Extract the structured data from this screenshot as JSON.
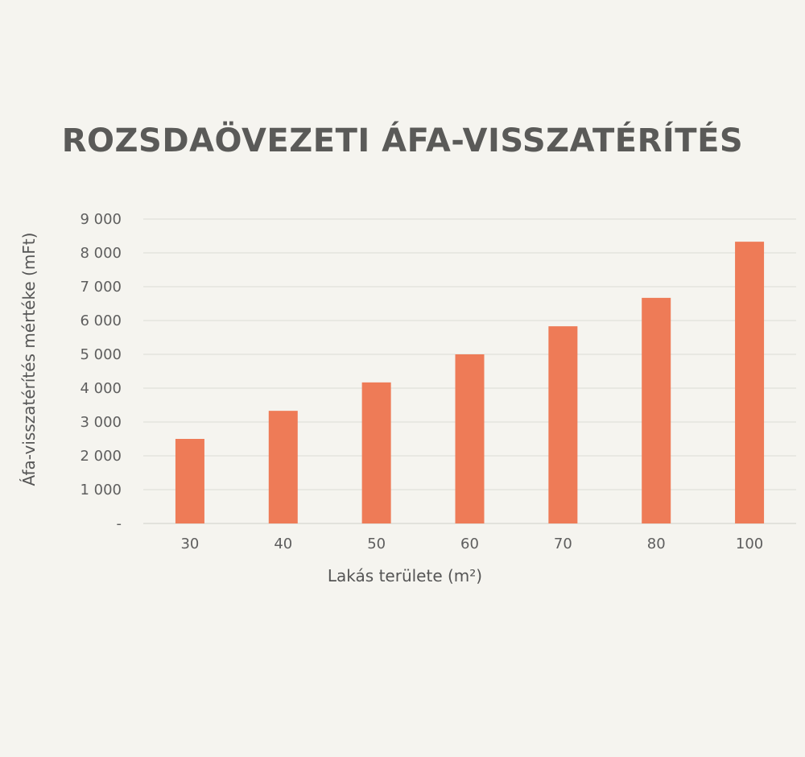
{
  "chart_data": {
    "type": "bar",
    "title": "ROZSDAÖVEZETI ÁFA-VISSZATÉRÍTÉS",
    "xlabel": "Lakás területe (m²)",
    "ylabel": "Áfa-visszatérítés mértéke (mFt)",
    "categories": [
      "30",
      "40",
      "50",
      "60",
      "70",
      "80",
      "100"
    ],
    "values": [
      2500,
      3330,
      4170,
      5000,
      5830,
      6670,
      8330
    ],
    "ylim": [
      0,
      9000
    ],
    "yticks": [
      0,
      1000,
      2000,
      3000,
      4000,
      5000,
      6000,
      7000,
      8000,
      9000
    ],
    "ytick_labels": [
      "-",
      "1 000",
      "2 000",
      "3 000",
      "4 000",
      "5 000",
      "6 000",
      "7 000",
      "8 000",
      "9 000"
    ],
    "grid": true,
    "legend": "none",
    "bar_color": "#ee7b57",
    "grid_color": "#dcdbd6"
  }
}
